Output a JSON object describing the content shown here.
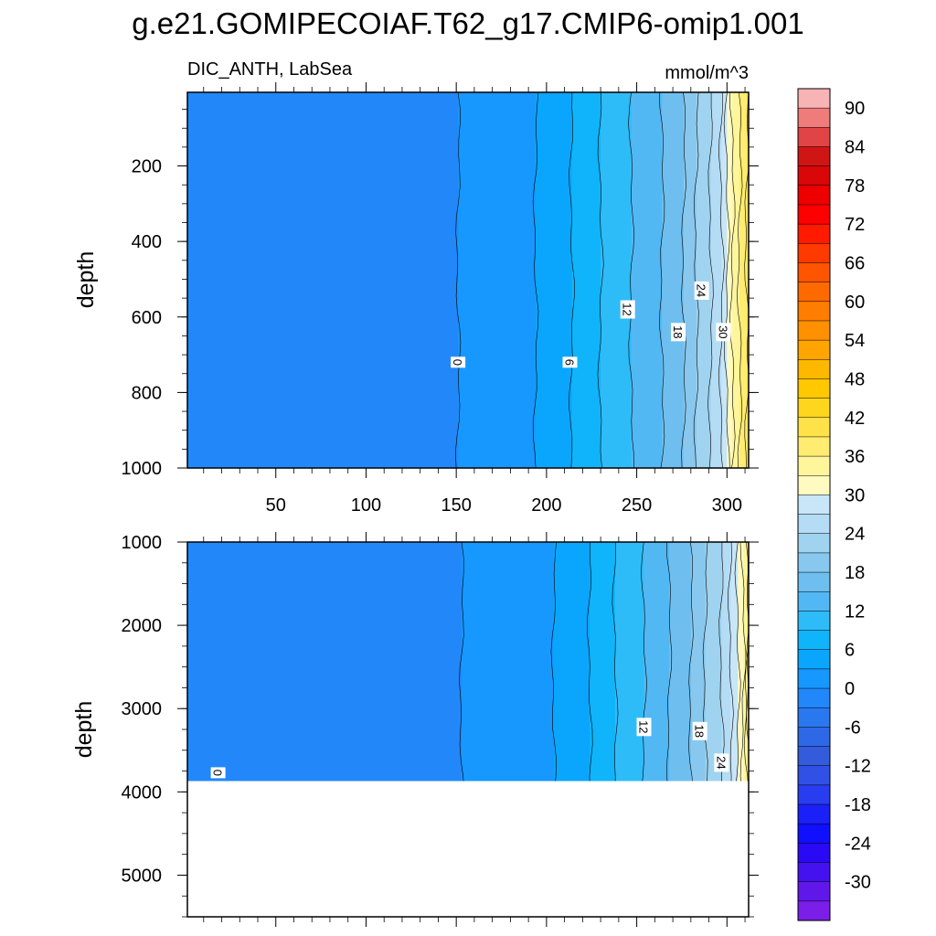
{
  "chart_data": {
    "type": "heatmap",
    "title": "g.e21.GOMIPECOIAF.T62_g17.CMIP6-omip1.001",
    "left_subtitle": "DIC_ANTH, LabSea",
    "right_subtitle": "mmol/m^3",
    "xlabel": "",
    "x_ticks": [
      50,
      100,
      150,
      200,
      250,
      300
    ],
    "xlim": [
      1,
      312
    ],
    "panels": [
      {
        "name": "upper",
        "ylabel": "depth",
        "ylim": [
          5,
          1000
        ],
        "y_ticks": [
          200,
          400,
          600,
          800,
          1000
        ],
        "contour_crossings": [
          {
            "level": 0,
            "x": 151
          },
          {
            "level": 3,
            "x": 194
          },
          {
            "level": 6,
            "x": 214
          },
          {
            "level": 9,
            "x": 230
          },
          {
            "level": 12,
            "x": 247
          },
          {
            "level": 15,
            "x": 264
          },
          {
            "level": 18,
            "x": 276
          },
          {
            "level": 21,
            "x": 283
          },
          {
            "level": 24,
            "x": 291
          },
          {
            "level": 27,
            "x": 297
          },
          {
            "level": 30,
            "x": 300
          },
          {
            "level": 33,
            "x": 303
          },
          {
            "level": 36,
            "x": 307
          },
          {
            "level": 39,
            "x": 311
          }
        ],
        "contour_labels": [
          {
            "text": "0",
            "x": 151,
            "y": 720
          },
          {
            "text": "6",
            "x": 213,
            "y": 720
          },
          {
            "text": "12",
            "x": 245,
            "y": 580
          },
          {
            "text": "18",
            "x": 273,
            "y": 640
          },
          {
            "text": "24",
            "x": 286,
            "y": 530
          },
          {
            "text": "30",
            "x": 298,
            "y": 640
          }
        ]
      },
      {
        "name": "lower",
        "ylabel": "depth",
        "ylim": [
          1000,
          5500
        ],
        "y_ticks": [
          1000,
          2000,
          3000,
          4000,
          5000
        ],
        "seafloor_depth": 3870,
        "contour_crossings": [
          {
            "level": 0,
            "x": 153
          },
          {
            "level": 3,
            "x": 204
          },
          {
            "level": 6,
            "x": 224
          },
          {
            "level": 9,
            "x": 238
          },
          {
            "level": 12,
            "x": 254
          },
          {
            "level": 15,
            "x": 268
          },
          {
            "level": 18,
            "x": 280
          },
          {
            "level": 21,
            "x": 288
          },
          {
            "level": 24,
            "x": 297
          },
          {
            "level": 27,
            "x": 302
          },
          {
            "level": 30,
            "x": 306
          },
          {
            "level": 33,
            "x": 309
          },
          {
            "level": 36,
            "x": 311
          },
          {
            "level": 39,
            "x": 312
          }
        ],
        "contour_labels": [
          {
            "text": "0",
            "x": 18,
            "y": 3770
          },
          {
            "text": "12",
            "x": 254,
            "y": 3220
          },
          {
            "text": "18",
            "x": 285,
            "y": 3270
          },
          {
            "text": "24",
            "x": 297,
            "y": 3650
          }
        ]
      }
    ],
    "colorbar": {
      "labels": [
        90,
        84,
        78,
        72,
        66,
        60,
        54,
        48,
        42,
        36,
        30,
        24,
        18,
        12,
        6,
        0,
        -6,
        -12,
        -18,
        -24,
        -30
      ],
      "colors_top_to_bottom": [
        "#f8b4b4",
        "#ef7b7b",
        "#e04444",
        "#d01515",
        "#d90707",
        "#ee0000",
        "#ff0000",
        "#ff1a00",
        "#ff3a00",
        "#ff5400",
        "#ff6a00",
        "#ff7d00",
        "#ff9000",
        "#ffa400",
        "#ffb800",
        "#ffc800",
        "#ffd61e",
        "#ffe24a",
        "#ffec70",
        "#fff59a",
        "#fffac0",
        "#c8e6f8",
        "#b4dcf4",
        "#9fd3f0",
        "#88c8ee",
        "#6ebff0",
        "#52b8f4",
        "#2ebcf8",
        "#10b4fa",
        "#0aa6fe",
        "#1798ff",
        "#2288fa",
        "#2a78f0",
        "#2f68e6",
        "#345bdc",
        "#3050e6",
        "#283cf0",
        "#1c20f8",
        "#1010ff",
        "#2a0af4",
        "#4412ee",
        "#6018ea",
        "#7a1ee8"
      ]
    }
  }
}
